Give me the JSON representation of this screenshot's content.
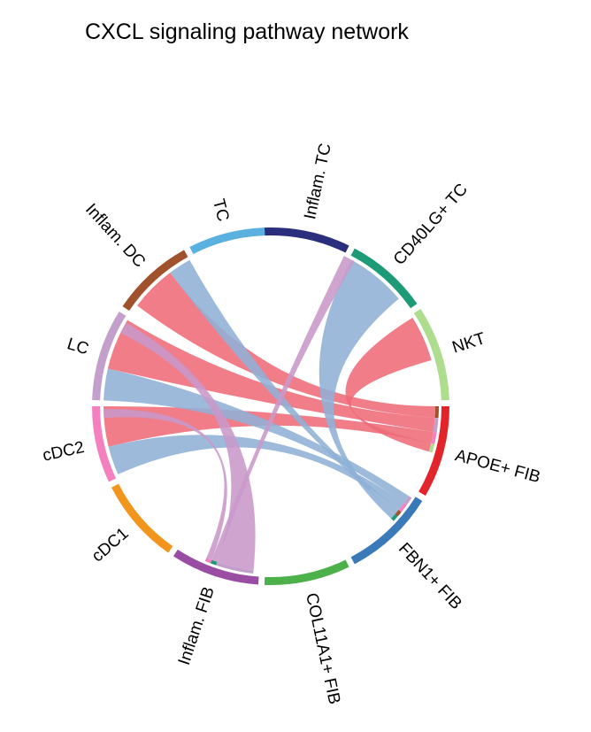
{
  "title": "CXCL signaling pathway network",
  "chart_data": {
    "type": "chord",
    "title": "CXCL signaling pathway network",
    "sectors": [
      {
        "name": "Inflam. TC",
        "color": "#2b2e7c",
        "a0": -2,
        "a1": 26
      },
      {
        "name": "CD40LG+ TC",
        "color": "#1d9a77",
        "a0": 28,
        "a1": 55
      },
      {
        "name": "NKT",
        "color": "#aedd8e",
        "a0": 57,
        "a1": 88
      },
      {
        "name": "APOE+ FIB",
        "color": "#e2242b",
        "a0": 90,
        "a1": 120
      },
      {
        "name": "FBN1+ FIB",
        "color": "#3a7ab9",
        "a0": 122,
        "a1": 152
      },
      {
        "name": "COL11A1+ FIB",
        "color": "#4cb14a",
        "a0": 154,
        "a1": 182
      },
      {
        "name": "Inflam. FIB",
        "color": "#9a4ea3",
        "a0": 184,
        "a1": 213
      },
      {
        "name": "cDC1",
        "color": "#f2951d",
        "a0": 215,
        "a1": 243
      },
      {
        "name": "cDC2",
        "color": "#f580bf",
        "a0": 245,
        "a1": 270
      },
      {
        "name": "LC",
        "color": "#c39fcc",
        "a0": 272,
        "a1": 302
      },
      {
        "name": "Inflam. DC",
        "color": "#a0522d",
        "a0": 304,
        "a1": 331
      },
      {
        "name": "TC",
        "color": "#5ab0df",
        "a0": 333,
        "a1": 358
      }
    ],
    "links": [
      {
        "source": "APOE+ FIB",
        "target": "Inflam. DC",
        "color": "#ee6b78",
        "s0": 90,
        "s1": 94,
        "t0": 307,
        "t1": 323
      },
      {
        "source": "APOE+ FIB",
        "target": "LC",
        "color": "#ee6b78",
        "s0": 94,
        "s1": 99,
        "t0": 283,
        "t1": 301
      },
      {
        "source": "APOE+ FIB",
        "target": "cDC2",
        "color": "#ee6b78",
        "s0": 99,
        "s1": 103,
        "t0": 256,
        "t1": 270
      },
      {
        "source": "APOE+ FIB",
        "target": "NKT",
        "color": "#ee6b78",
        "s0": 103,
        "s1": 106,
        "t0": 58,
        "t1": 74
      },
      {
        "source": "FBN1+ FIB",
        "target": "LC",
        "color": "#8fb0d6",
        "s0": 123,
        "s1": 126,
        "t0": 272,
        "t1": 283
      },
      {
        "source": "FBN1+ FIB",
        "target": "cDC2",
        "color": "#8fb0d6",
        "s0": 126,
        "s1": 129,
        "t0": 246,
        "t1": 256
      },
      {
        "source": "FBN1+ FIB",
        "target": "Inflam. DC",
        "color": "#8fb0d6",
        "s0": 129,
        "s1": 131,
        "t0": 323,
        "t1": 331
      },
      {
        "source": "FBN1+ FIB",
        "target": "CD40LG+ TC",
        "color": "#8fb0d6",
        "s0": 131,
        "s1": 133,
        "t0": 29,
        "t1": 50
      },
      {
        "source": "Inflam. FIB",
        "target": "LC",
        "color": "#c899c9",
        "s0": 186,
        "s1": 199,
        "t0": 296,
        "t1": 300
      },
      {
        "source": "Inflam. FIB",
        "target": "CD40LG+ TC",
        "color": "#c899c9",
        "s0": 199,
        "s1": 201,
        "t0": 26,
        "t1": 30
      },
      {
        "source": "Inflam. FIB",
        "target": "cDC2",
        "color": "#c899c9",
        "s0": 201,
        "s1": 203,
        "t0": 266,
        "t1": 269
      }
    ]
  }
}
